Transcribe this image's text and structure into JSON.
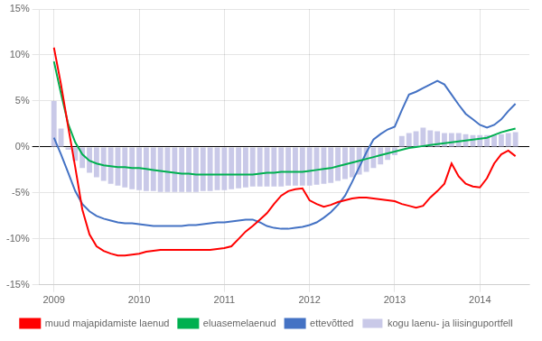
{
  "chart_data": {
    "type": "bar",
    "x": [
      2009.0,
      2009.083,
      2009.167,
      2009.25,
      2009.333,
      2009.417,
      2009.5,
      2009.583,
      2009.667,
      2009.75,
      2009.833,
      2009.917,
      2010.0,
      2010.083,
      2010.167,
      2010.25,
      2010.333,
      2010.417,
      2010.5,
      2010.583,
      2010.667,
      2010.75,
      2010.833,
      2010.917,
      2011.0,
      2011.083,
      2011.167,
      2011.25,
      2011.333,
      2011.417,
      2011.5,
      2011.583,
      2011.667,
      2011.75,
      2011.833,
      2011.917,
      2012.0,
      2012.083,
      2012.167,
      2012.25,
      2012.333,
      2012.417,
      2012.5,
      2012.583,
      2012.667,
      2012.75,
      2012.833,
      2012.917,
      2013.0,
      2013.083,
      2013.167,
      2013.25,
      2013.333,
      2013.417,
      2013.5,
      2013.583,
      2013.667,
      2013.75,
      2013.833,
      2013.917,
      2014.0,
      2014.083,
      2014.167,
      2014.25,
      2014.333,
      2014.417
    ],
    "series": [
      {
        "name": "kogu laenu- ja liisinguportfell",
        "type": "bar",
        "color": "#c9c9e8",
        "values": [
          0.05,
          0.02,
          -0.003,
          -0.015,
          -0.023,
          -0.028,
          -0.033,
          -0.037,
          -0.04,
          -0.042,
          -0.044,
          -0.046,
          -0.047,
          -0.048,
          -0.048,
          -0.049,
          -0.049,
          -0.049,
          -0.049,
          -0.049,
          -0.049,
          -0.048,
          -0.048,
          -0.047,
          -0.047,
          -0.046,
          -0.045,
          -0.044,
          -0.043,
          -0.043,
          -0.043,
          -0.043,
          -0.043,
          -0.042,
          -0.042,
          -0.042,
          -0.042,
          -0.041,
          -0.04,
          -0.039,
          -0.037,
          -0.035,
          -0.033,
          -0.03,
          -0.027,
          -0.023,
          -0.019,
          -0.014,
          -0.009,
          0.012,
          0.015,
          0.017,
          0.021,
          0.018,
          0.017,
          0.015,
          0.015,
          0.015,
          0.014,
          0.013,
          0.013,
          0.013,
          0.013,
          0.014,
          0.015,
          0.016
        ]
      },
      {
        "name": "ettevõtted",
        "type": "line",
        "color": "#4472c4",
        "values": [
          0.01,
          -0.008,
          -0.028,
          -0.048,
          -0.062,
          -0.07,
          -0.075,
          -0.078,
          -0.08,
          -0.082,
          -0.083,
          -0.083,
          -0.084,
          -0.085,
          -0.086,
          -0.086,
          -0.086,
          -0.086,
          -0.086,
          -0.085,
          -0.085,
          -0.084,
          -0.083,
          -0.082,
          -0.082,
          -0.081,
          -0.08,
          -0.079,
          -0.079,
          -0.082,
          -0.086,
          -0.088,
          -0.089,
          -0.089,
          -0.088,
          -0.087,
          -0.085,
          -0.082,
          -0.077,
          -0.071,
          -0.063,
          -0.053,
          -0.038,
          -0.022,
          -0.006,
          0.008,
          0.014,
          0.019,
          0.022,
          0.04,
          0.057,
          0.06,
          0.064,
          0.068,
          0.072,
          0.068,
          0.057,
          0.046,
          0.036,
          0.03,
          0.024,
          0.021,
          0.024,
          0.03,
          0.039,
          0.047
        ]
      },
      {
        "name": "eluasemelaenud",
        "type": "line",
        "color": "#00b050",
        "values": [
          0.093,
          0.058,
          0.025,
          0.005,
          -0.008,
          -0.015,
          -0.018,
          -0.02,
          -0.021,
          -0.022,
          -0.022,
          -0.023,
          -0.023,
          -0.024,
          -0.025,
          -0.026,
          -0.027,
          -0.028,
          -0.029,
          -0.029,
          -0.03,
          -0.03,
          -0.03,
          -0.03,
          -0.03,
          -0.03,
          -0.03,
          -0.03,
          -0.03,
          -0.029,
          -0.028,
          -0.028,
          -0.027,
          -0.027,
          -0.027,
          -0.027,
          -0.026,
          -0.025,
          -0.024,
          -0.023,
          -0.021,
          -0.019,
          -0.017,
          -0.015,
          -0.013,
          -0.011,
          -0.009,
          -0.007,
          -0.005,
          -0.003,
          -0.001,
          0.0,
          0.001,
          0.002,
          0.003,
          0.004,
          0.005,
          0.006,
          0.007,
          0.008,
          0.009,
          0.01,
          0.013,
          0.016,
          0.018,
          0.02
        ]
      },
      {
        "name": "muud majapidamiste laenud",
        "type": "line",
        "color": "#ff0000",
        "values": [
          0.108,
          0.068,
          0.022,
          -0.022,
          -0.068,
          -0.095,
          -0.108,
          -0.113,
          -0.116,
          -0.118,
          -0.118,
          -0.117,
          -0.116,
          -0.114,
          -0.113,
          -0.112,
          -0.112,
          -0.112,
          -0.112,
          -0.112,
          -0.112,
          -0.112,
          -0.112,
          -0.111,
          -0.11,
          -0.108,
          -0.1,
          -0.092,
          -0.086,
          -0.079,
          -0.072,
          -0.062,
          -0.053,
          -0.048,
          -0.046,
          -0.045,
          -0.058,
          -0.062,
          -0.065,
          -0.063,
          -0.06,
          -0.058,
          -0.056,
          -0.055,
          -0.055,
          -0.056,
          -0.057,
          -0.058,
          -0.059,
          -0.062,
          -0.064,
          -0.066,
          -0.064,
          -0.055,
          -0.048,
          -0.04,
          -0.018,
          -0.032,
          -0.04,
          -0.043,
          -0.044,
          -0.034,
          -0.018,
          -0.008,
          -0.004,
          -0.01
        ]
      }
    ],
    "xlim": [
      2008.83,
      2014.58
    ],
    "xticks": [
      2009,
      2010,
      2011,
      2012,
      2013,
      2014
    ],
    "ylim": [
      -0.15,
      0.15
    ],
    "yticks": [
      {
        "value": -0.15,
        "label": "-15%"
      },
      {
        "value": -0.1,
        "label": "-10%"
      },
      {
        "value": -0.05,
        "label": "-5%"
      },
      {
        "value": 0.0,
        "label": "0%"
      },
      {
        "value": 0.05,
        "label": "5%"
      },
      {
        "value": 0.1,
        "label": "10%"
      },
      {
        "value": 0.15,
        "label": "15%"
      }
    ],
    "grid": true,
    "legend": "bottom"
  }
}
